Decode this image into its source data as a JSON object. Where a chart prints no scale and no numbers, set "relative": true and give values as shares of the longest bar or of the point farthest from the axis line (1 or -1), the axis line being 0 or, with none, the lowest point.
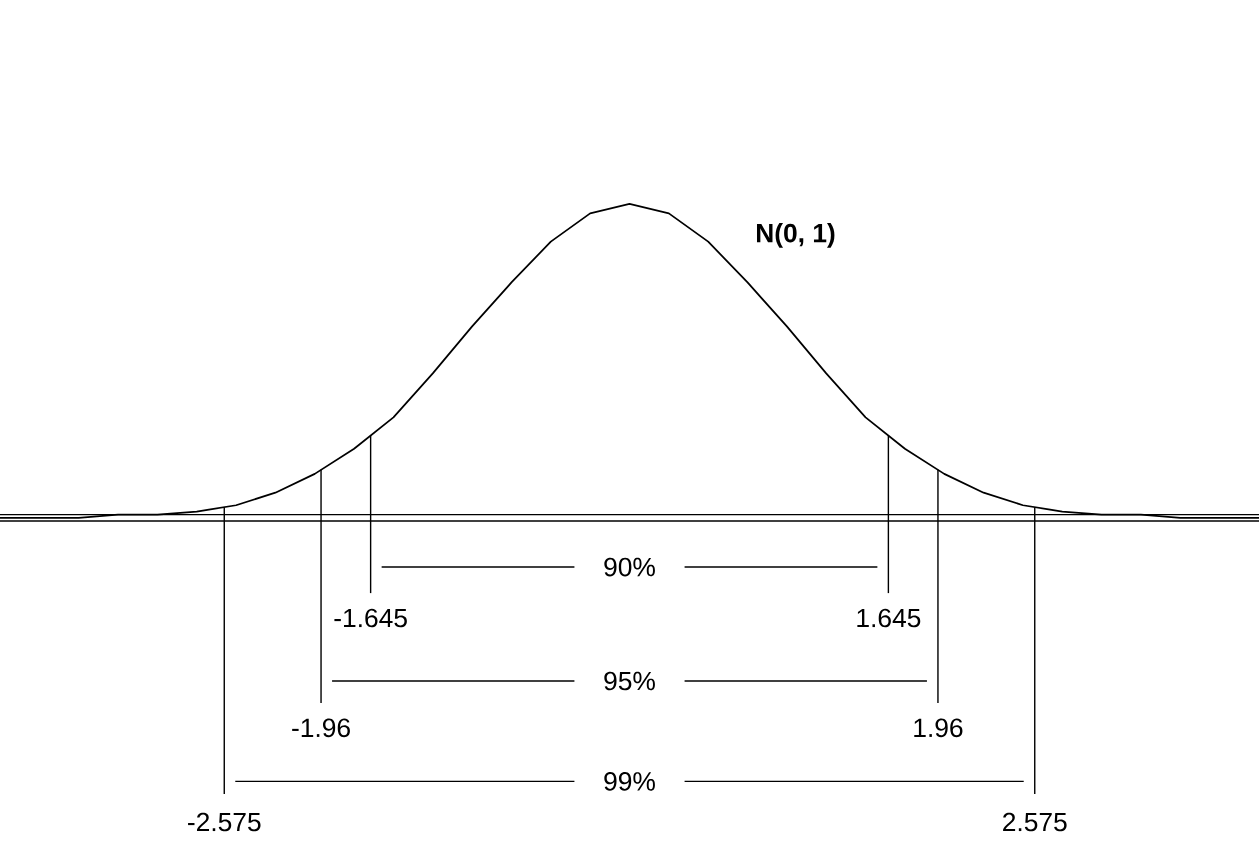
{
  "chart_data": {
    "type": "line",
    "relative": true,
    "x": [
      -4,
      -3.75,
      -3.5,
      -3.25,
      -3,
      -2.75,
      -2.5,
      -2.25,
      -2,
      -1.75,
      -1.5,
      -1.25,
      -1,
      -0.75,
      -0.5,
      -0.25,
      0,
      0.25,
      0.5,
      0.75,
      1,
      1.25,
      1.5,
      1.75,
      2,
      2.25,
      2.5,
      2.75,
      3,
      3.25,
      3.5,
      3.75,
      4
    ],
    "series": [
      {
        "name": "N(0, 1)",
        "color": "#000000",
        "values": [
          0,
          0,
          0,
          0.01,
          0.01,
          0.02,
          0.04,
          0.08,
          0.14,
          0.22,
          0.32,
          0.46,
          0.61,
          0.75,
          0.88,
          0.97,
          1,
          0.97,
          0.88,
          0.75,
          0.61,
          0.46,
          0.32,
          0.22,
          0.14,
          0.08,
          0.04,
          0.02,
          0.01,
          0.01,
          0,
          0,
          0
        ]
      }
    ],
    "xlim": [
      -4,
      4
    ],
    "xticks": [
      {
        "value": -1.645,
        "label": "-1.645"
      },
      {
        "value": 1.645,
        "label": "1.645"
      }
    ],
    "ref_lines": [
      {
        "axis": "x",
        "value": -1.645
      },
      {
        "axis": "x",
        "value": 1.645
      },
      {
        "axis": "x",
        "value": -1.96,
        "label": "-1.96"
      },
      {
        "axis": "x",
        "value": 1.96,
        "label": "1.96"
      },
      {
        "axis": "x",
        "value": -2.575,
        "label": "-2.575"
      },
      {
        "axis": "x",
        "value": 2.575,
        "label": "2.575"
      }
    ],
    "annotations": [
      "90%",
      "95%",
      "99%"
    ]
  }
}
